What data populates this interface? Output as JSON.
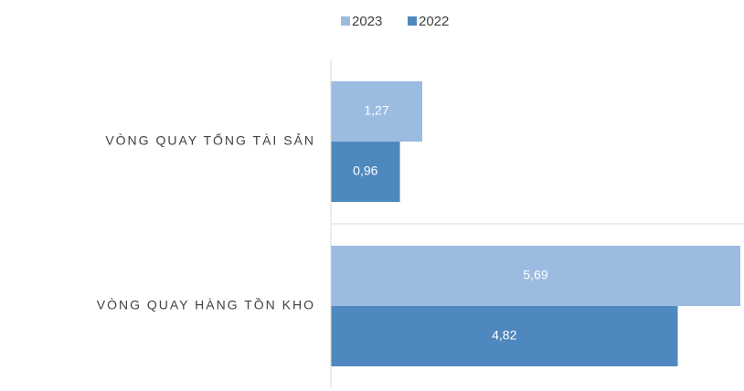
{
  "chart_data": {
    "type": "hbar",
    "categories": [
      "VÒNG QUAY TỔNG TÀI SẢN",
      "VÒNG QUAY HÀNG TỒN KHO"
    ],
    "series": [
      {
        "name": "2023",
        "color": "#9bbbe0",
        "values": [
          1.27,
          5.69
        ],
        "value_labels": [
          "1,27",
          "5,69"
        ]
      },
      {
        "name": "2022",
        "color": "#4f88bf",
        "values": [
          0.96,
          4.82
        ],
        "value_labels": [
          "0,96",
          "4,82"
        ]
      }
    ],
    "legend": "top"
  }
}
